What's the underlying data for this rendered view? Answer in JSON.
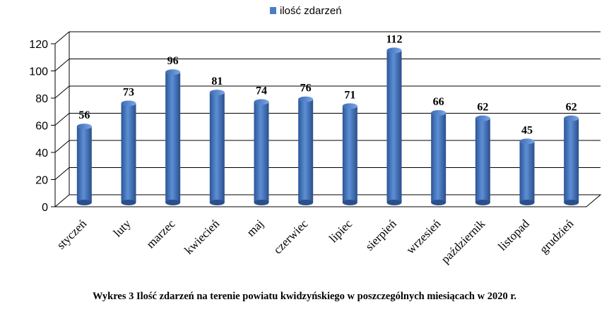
{
  "chart_data": {
    "type": "bar",
    "categories": [
      "styczeń",
      "luty",
      "marzec",
      "kwiecień",
      "maj",
      "czerwiec",
      "lipiec",
      "sierpień",
      "wrzesień",
      "październik",
      "listopad",
      "grudzień"
    ],
    "series": [
      {
        "name": "ilość zdarzeń",
        "values": [
          56,
          73,
          96,
          81,
          74,
          76,
          71,
          112,
          66,
          62,
          45,
          62
        ]
      }
    ],
    "ylim": [
      0,
      120
    ],
    "yticks": [
      "0",
      "20",
      "40",
      "60",
      "80",
      "100",
      "120"
    ],
    "grid": true,
    "legend_position": "top",
    "bar_color": "#4a7dc4"
  },
  "caption": "Wykres 3 Ilość zdarzeń na terenie powiatu kwidzyńskiego w poszczególnych miesiącach w 2020 r."
}
